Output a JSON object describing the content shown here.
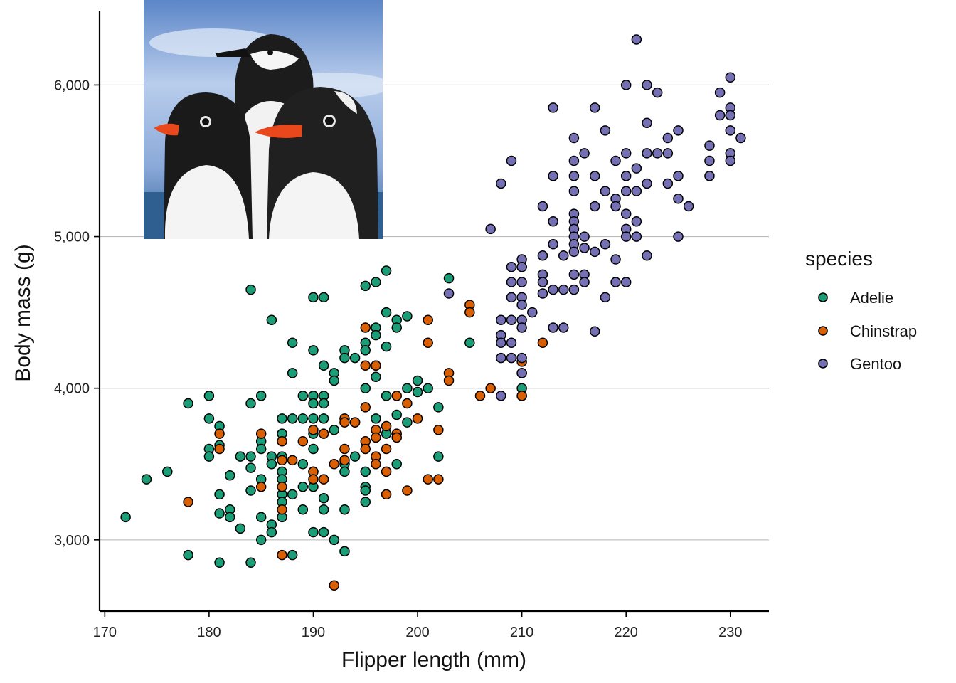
{
  "chart_data": {
    "type": "scatter",
    "xlabel": "Flipper length (mm)",
    "ylabel": "Body mass (g)",
    "xlim": [
      169.5,
      233.7
    ],
    "ylim": [
      2530,
      6490
    ],
    "x_ticks": [
      170,
      180,
      190,
      200,
      210,
      220,
      230
    ],
    "x_tick_labels": [
      "170",
      "180",
      "190",
      "200",
      "210",
      "220",
      "230"
    ],
    "y_ticks": [
      3000,
      4000,
      5000,
      6000
    ],
    "y_tick_labels": [
      "3,000",
      "4,000",
      "5,000",
      "6,000"
    ],
    "grid": "horizontal major lines",
    "legend": {
      "title": "species",
      "placement": "right",
      "entries": [
        {
          "name": "Adelie",
          "color": "#1b9e77"
        },
        {
          "name": "Chinstrap",
          "color": "#d95f02"
        },
        {
          "name": "Gentoo",
          "color": "#7570b3"
        }
      ]
    },
    "inset_image": {
      "subject": "penguin-illustration",
      "placement": "top-left"
    },
    "series": [
      {
        "name": "Adelie",
        "color": "#1b9e77",
        "points": [
          [
            172,
            3150
          ],
          [
            174,
            3400
          ],
          [
            176,
            3450
          ],
          [
            178,
            3900
          ],
          [
            178,
            2900
          ],
          [
            180,
            3950
          ],
          [
            180,
            3800
          ],
          [
            180,
            3600
          ],
          [
            180,
            3550
          ],
          [
            181,
            3750
          ],
          [
            181,
            3625
          ],
          [
            181,
            3300
          ],
          [
            181,
            3175
          ],
          [
            181,
            2850
          ],
          [
            182,
            3425
          ],
          [
            182,
            3200
          ],
          [
            182,
            3150
          ],
          [
            183,
            3550
          ],
          [
            183,
            3075
          ],
          [
            184,
            4650
          ],
          [
            184,
            3900
          ],
          [
            184,
            3550
          ],
          [
            184,
            3475
          ],
          [
            184,
            3325
          ],
          [
            184,
            2850
          ],
          [
            185,
            3950
          ],
          [
            185,
            3650
          ],
          [
            185,
            3600
          ],
          [
            185,
            3400
          ],
          [
            185,
            3150
          ],
          [
            185,
            3000
          ],
          [
            186,
            4450
          ],
          [
            186,
            3550
          ],
          [
            186,
            3500
          ],
          [
            186,
            3100
          ],
          [
            186,
            3050
          ],
          [
            187,
            3800
          ],
          [
            187,
            3700
          ],
          [
            187,
            3550
          ],
          [
            187,
            3450
          ],
          [
            187,
            3400
          ],
          [
            187,
            3300
          ],
          [
            187,
            3250
          ],
          [
            187,
            3150
          ],
          [
            188,
            4300
          ],
          [
            188,
            4100
          ],
          [
            188,
            3800
          ],
          [
            188,
            3300
          ],
          [
            188,
            2900
          ],
          [
            189,
            3950
          ],
          [
            189,
            3800
          ],
          [
            189,
            3500
          ],
          [
            189,
            3350
          ],
          [
            189,
            3200
          ],
          [
            190,
            4600
          ],
          [
            190,
            4250
          ],
          [
            190,
            3950
          ],
          [
            190,
            3900
          ],
          [
            190,
            3800
          ],
          [
            190,
            3700
          ],
          [
            190,
            3600
          ],
          [
            190,
            3450
          ],
          [
            190,
            3350
          ],
          [
            190,
            3050
          ],
          [
            191,
            4600
          ],
          [
            191,
            4150
          ],
          [
            191,
            3950
          ],
          [
            191,
            3900
          ],
          [
            191,
            3800
          ],
          [
            191,
            3275
          ],
          [
            191,
            3200
          ],
          [
            191,
            3050
          ],
          [
            192,
            4100
          ],
          [
            192,
            4050
          ],
          [
            192,
            3725
          ],
          [
            192,
            3000
          ],
          [
            193,
            4250
          ],
          [
            193,
            4200
          ],
          [
            193,
            3500
          ],
          [
            193,
            3450
          ],
          [
            193,
            3200
          ],
          [
            193,
            2925
          ],
          [
            194,
            4200
          ],
          [
            194,
            3775
          ],
          [
            194,
            3550
          ],
          [
            195,
            4675
          ],
          [
            195,
            4300
          ],
          [
            195,
            4250
          ],
          [
            195,
            4000
          ],
          [
            195,
            3450
          ],
          [
            195,
            3350
          ],
          [
            195,
            3325
          ],
          [
            195,
            3250
          ],
          [
            196,
            4700
          ],
          [
            196,
            4400
          ],
          [
            196,
            4350
          ],
          [
            196,
            4150
          ],
          [
            196,
            4075
          ],
          [
            196,
            3800
          ],
          [
            197,
            4775
          ],
          [
            197,
            4500
          ],
          [
            197,
            4275
          ],
          [
            197,
            3950
          ],
          [
            197,
            3700
          ],
          [
            198,
            4450
          ],
          [
            198,
            4400
          ],
          [
            198,
            3825
          ],
          [
            198,
            3500
          ],
          [
            199,
            4475
          ],
          [
            199,
            4000
          ],
          [
            199,
            3775
          ],
          [
            200,
            4050
          ],
          [
            200,
            3975
          ],
          [
            201,
            4000
          ],
          [
            202,
            3875
          ],
          [
            202,
            3550
          ],
          [
            203,
            4725
          ],
          [
            205,
            4300
          ],
          [
            210,
            4000
          ],
          [
            210,
            3950
          ]
        ]
      },
      {
        "name": "Chinstrap",
        "color": "#d95f02",
        "points": [
          [
            178,
            3250
          ],
          [
            181,
            3700
          ],
          [
            181,
            3600
          ],
          [
            185,
            3700
          ],
          [
            185,
            3350
          ],
          [
            187,
            3650
          ],
          [
            187,
            3525
          ],
          [
            187,
            3350
          ],
          [
            187,
            3200
          ],
          [
            187,
            2900
          ],
          [
            188,
            3525
          ],
          [
            189,
            3650
          ],
          [
            190,
            3725
          ],
          [
            190,
            3450
          ],
          [
            190,
            3400
          ],
          [
            191,
            3700
          ],
          [
            191,
            3400
          ],
          [
            192,
            3500
          ],
          [
            192,
            2700
          ],
          [
            193,
            3800
          ],
          [
            193,
            3775
          ],
          [
            193,
            3600
          ],
          [
            193,
            3525
          ],
          [
            194,
            3775
          ],
          [
            195,
            4400
          ],
          [
            195,
            4150
          ],
          [
            195,
            3875
          ],
          [
            195,
            3650
          ],
          [
            195,
            3600
          ],
          [
            196,
            4150
          ],
          [
            196,
            3725
          ],
          [
            196,
            3675
          ],
          [
            196,
            3550
          ],
          [
            196,
            3500
          ],
          [
            197,
            3750
          ],
          [
            197,
            3600
          ],
          [
            197,
            3450
          ],
          [
            197,
            3300
          ],
          [
            198,
            3950
          ],
          [
            198,
            3700
          ],
          [
            198,
            3675
          ],
          [
            199,
            3900
          ],
          [
            199,
            3325
          ],
          [
            200,
            3800
          ],
          [
            201,
            4450
          ],
          [
            201,
            4300
          ],
          [
            201,
            3400
          ],
          [
            202,
            3725
          ],
          [
            202,
            3400
          ],
          [
            203,
            4100
          ],
          [
            203,
            4050
          ],
          [
            205,
            4550
          ],
          [
            205,
            4500
          ],
          [
            206,
            3950
          ],
          [
            207,
            4000
          ],
          [
            210,
            4800
          ],
          [
            210,
            4175
          ],
          [
            210,
            4100
          ],
          [
            210,
            3950
          ],
          [
            212,
            4300
          ]
        ]
      },
      {
        "name": "Gentoo",
        "color": "#7570b3",
        "points": [
          [
            203,
            4625
          ],
          [
            207,
            5050
          ],
          [
            208,
            5350
          ],
          [
            208,
            4450
          ],
          [
            208,
            4350
          ],
          [
            208,
            4300
          ],
          [
            208,
            4200
          ],
          [
            208,
            3950
          ],
          [
            209,
            5500
          ],
          [
            209,
            4800
          ],
          [
            209,
            4700
          ],
          [
            209,
            4600
          ],
          [
            209,
            4450
          ],
          [
            209,
            4300
          ],
          [
            209,
            4200
          ],
          [
            210,
            4850
          ],
          [
            210,
            4800
          ],
          [
            210,
            4700
          ],
          [
            210,
            4600
          ],
          [
            210,
            4550
          ],
          [
            210,
            4450
          ],
          [
            210,
            4400
          ],
          [
            210,
            4200
          ],
          [
            210,
            4100
          ],
          [
            211,
            4500
          ],
          [
            212,
            5200
          ],
          [
            212,
            4875
          ],
          [
            212,
            4750
          ],
          [
            212,
            4700
          ],
          [
            212,
            4625
          ],
          [
            213,
            5850
          ],
          [
            213,
            5400
          ],
          [
            213,
            5100
          ],
          [
            213,
            4950
          ],
          [
            213,
            4650
          ],
          [
            213,
            4400
          ],
          [
            214,
            4875
          ],
          [
            214,
            4650
          ],
          [
            214,
            4400
          ],
          [
            215,
            5650
          ],
          [
            215,
            5500
          ],
          [
            215,
            5400
          ],
          [
            215,
            5300
          ],
          [
            215,
            5150
          ],
          [
            215,
            5100
          ],
          [
            215,
            5050
          ],
          [
            215,
            5000
          ],
          [
            215,
            4950
          ],
          [
            215,
            4900
          ],
          [
            215,
            4750
          ],
          [
            215,
            4650
          ],
          [
            216,
            5550
          ],
          [
            216,
            5000
          ],
          [
            216,
            4925
          ],
          [
            216,
            4750
          ],
          [
            216,
            4700
          ],
          [
            217,
            5850
          ],
          [
            217,
            5400
          ],
          [
            217,
            5200
          ],
          [
            217,
            4900
          ],
          [
            217,
            4375
          ],
          [
            218,
            5700
          ],
          [
            218,
            5300
          ],
          [
            218,
            4950
          ],
          [
            218,
            4600
          ],
          [
            219,
            5500
          ],
          [
            219,
            5250
          ],
          [
            219,
            5200
          ],
          [
            219,
            4850
          ],
          [
            219,
            4700
          ],
          [
            220,
            6000
          ],
          [
            220,
            5550
          ],
          [
            220,
            5400
          ],
          [
            220,
            5300
          ],
          [
            220,
            5150
          ],
          [
            220,
            5050
          ],
          [
            220,
            5000
          ],
          [
            220,
            4700
          ],
          [
            221,
            6300
          ],
          [
            221,
            5450
          ],
          [
            221,
            5300
          ],
          [
            221,
            5100
          ],
          [
            221,
            5000
          ],
          [
            222,
            6000
          ],
          [
            222,
            5750
          ],
          [
            222,
            5550
          ],
          [
            222,
            5350
          ],
          [
            222,
            4875
          ],
          [
            223,
            5950
          ],
          [
            223,
            5550
          ],
          [
            224,
            5650
          ],
          [
            224,
            5550
          ],
          [
            224,
            5350
          ],
          [
            225,
            5700
          ],
          [
            225,
            5400
          ],
          [
            225,
            5250
          ],
          [
            225,
            5000
          ],
          [
            226,
            5200
          ],
          [
            228,
            5600
          ],
          [
            228,
            5500
          ],
          [
            228,
            5400
          ],
          [
            229,
            5950
          ],
          [
            229,
            5800
          ],
          [
            230,
            6050
          ],
          [
            230,
            5850
          ],
          [
            230,
            5800
          ],
          [
            230,
            5700
          ],
          [
            230,
            5550
          ],
          [
            230,
            5500
          ],
          [
            231,
            5650
          ]
        ]
      }
    ]
  }
}
